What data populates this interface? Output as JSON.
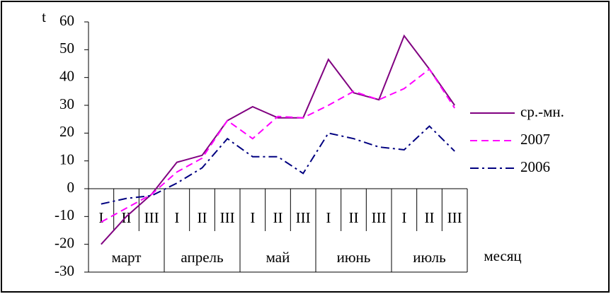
{
  "chart_data": {
    "type": "line",
    "ylabel": "t",
    "xlabel": "месяц",
    "categories": [
      "I",
      "II",
      "III",
      "I",
      "II",
      "III",
      "I",
      "II",
      "III",
      "I",
      "II",
      "III",
      "I",
      "II",
      "III"
    ],
    "groups": [
      "март",
      "апрель",
      "май",
      "июнь",
      "июль"
    ],
    "ylim": [
      -30,
      60
    ],
    "yticks": [
      -30,
      -20,
      -10,
      0,
      10,
      20,
      30,
      40,
      50,
      60
    ],
    "legend": "right",
    "series": [
      {
        "name": "ср.-мн.",
        "color": "#800080",
        "dash": "solid",
        "values": [
          -20,
          -10,
          -2,
          9.5,
          12,
          24.5,
          29.5,
          25.5,
          25.5,
          46.5,
          34.5,
          32,
          55,
          43,
          30
        ]
      },
      {
        "name": "2007",
        "color": "#ff00ff",
        "dash": "dashed",
        "values": [
          -12,
          -7,
          -2,
          6,
          11,
          24.5,
          18,
          26,
          25.5,
          30,
          35,
          32,
          36,
          43,
          29
        ]
      },
      {
        "name": "2006",
        "color": "#000080",
        "dash": "dashdot",
        "values": [
          -5.5,
          -3.5,
          -2.5,
          2,
          7.5,
          18,
          11.5,
          11.5,
          5.5,
          20,
          18,
          15,
          14,
          22.5,
          13.5
        ]
      }
    ]
  }
}
